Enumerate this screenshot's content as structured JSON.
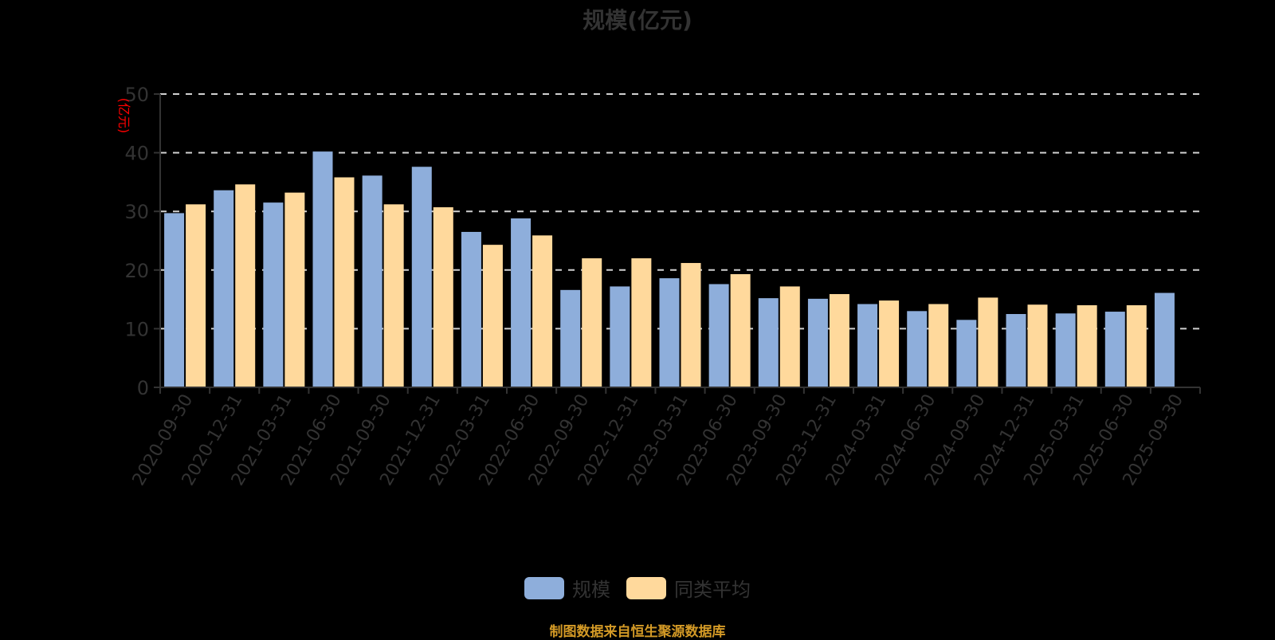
{
  "chart_data": {
    "type": "bar",
    "title": "规模(亿元)",
    "xlabel": "",
    "ylabel": "(亿元)",
    "ylim": [
      0,
      50
    ],
    "yticks": [
      0,
      10,
      20,
      30,
      40,
      50
    ],
    "grid": true,
    "legend_position": "bottom",
    "categories": [
      "2020-09-30",
      "2020-12-31",
      "2021-03-31",
      "2021-06-30",
      "2021-09-30",
      "2021-12-31",
      "2022-03-31",
      "2022-06-30",
      "2022-09-30",
      "2022-12-31",
      "2023-03-31",
      "2023-06-30",
      "2023-09-30",
      "2023-12-31",
      "2024-03-31",
      "2024-06-30",
      "2024-09-30",
      "2024-12-31",
      "2025-03-31",
      "2025-06-30",
      "2025-09-30"
    ],
    "series": [
      {
        "name": "规模",
        "color": "#8eaedb",
        "values": [
          29.7,
          33.6,
          31.5,
          40.2,
          36.1,
          37.6,
          26.5,
          28.8,
          16.6,
          17.2,
          18.6,
          17.6,
          15.2,
          15.1,
          14.2,
          13.0,
          11.5,
          12.5,
          12.6,
          12.9,
          16.1
        ]
      },
      {
        "name": "同类平均",
        "color": "#ffd99c",
        "values": [
          31.2,
          34.6,
          33.2,
          35.8,
          31.2,
          30.7,
          24.3,
          25.9,
          22.0,
          22.0,
          21.2,
          19.3,
          17.2,
          15.9,
          14.8,
          14.2,
          15.3,
          14.1,
          14.0,
          14.0,
          null
        ]
      }
    ]
  },
  "header": {
    "title": "规模(亿元)"
  },
  "axis": {
    "y_unit": "(亿元)",
    "unit_color": "#ff0000"
  },
  "legend": [
    {
      "label": "规模",
      "color": "#8eaedb"
    },
    {
      "label": "同类平均",
      "color": "#ffd99c"
    }
  ],
  "footer": {
    "source": "制图数据来自恒生聚源数据库"
  }
}
